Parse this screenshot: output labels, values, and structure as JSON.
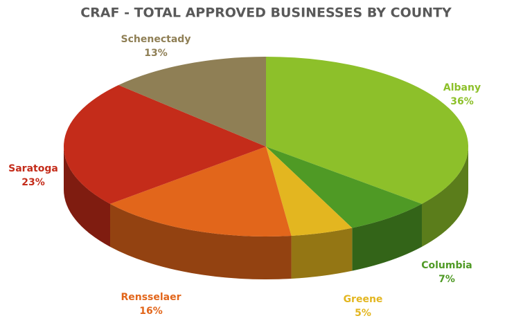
{
  "chart_data": {
    "type": "pie",
    "title": "CRAF - TOTAL APPROVED BUSINESSES BY COUNTY",
    "categories": [
      "Albany",
      "Columbia",
      "Greene",
      "Rensselaer",
      "Saratoga",
      "Schenectady"
    ],
    "values": [
      36,
      7,
      5,
      16,
      23,
      13
    ],
    "value_labels": [
      "36%",
      "7%",
      "5%",
      "16%",
      "23%",
      "13%"
    ],
    "colors": [
      "#8dc02a",
      "#4f9a25",
      "#e3b620",
      "#e2661b",
      "#c42c1a",
      "#8f7f55"
    ]
  }
}
